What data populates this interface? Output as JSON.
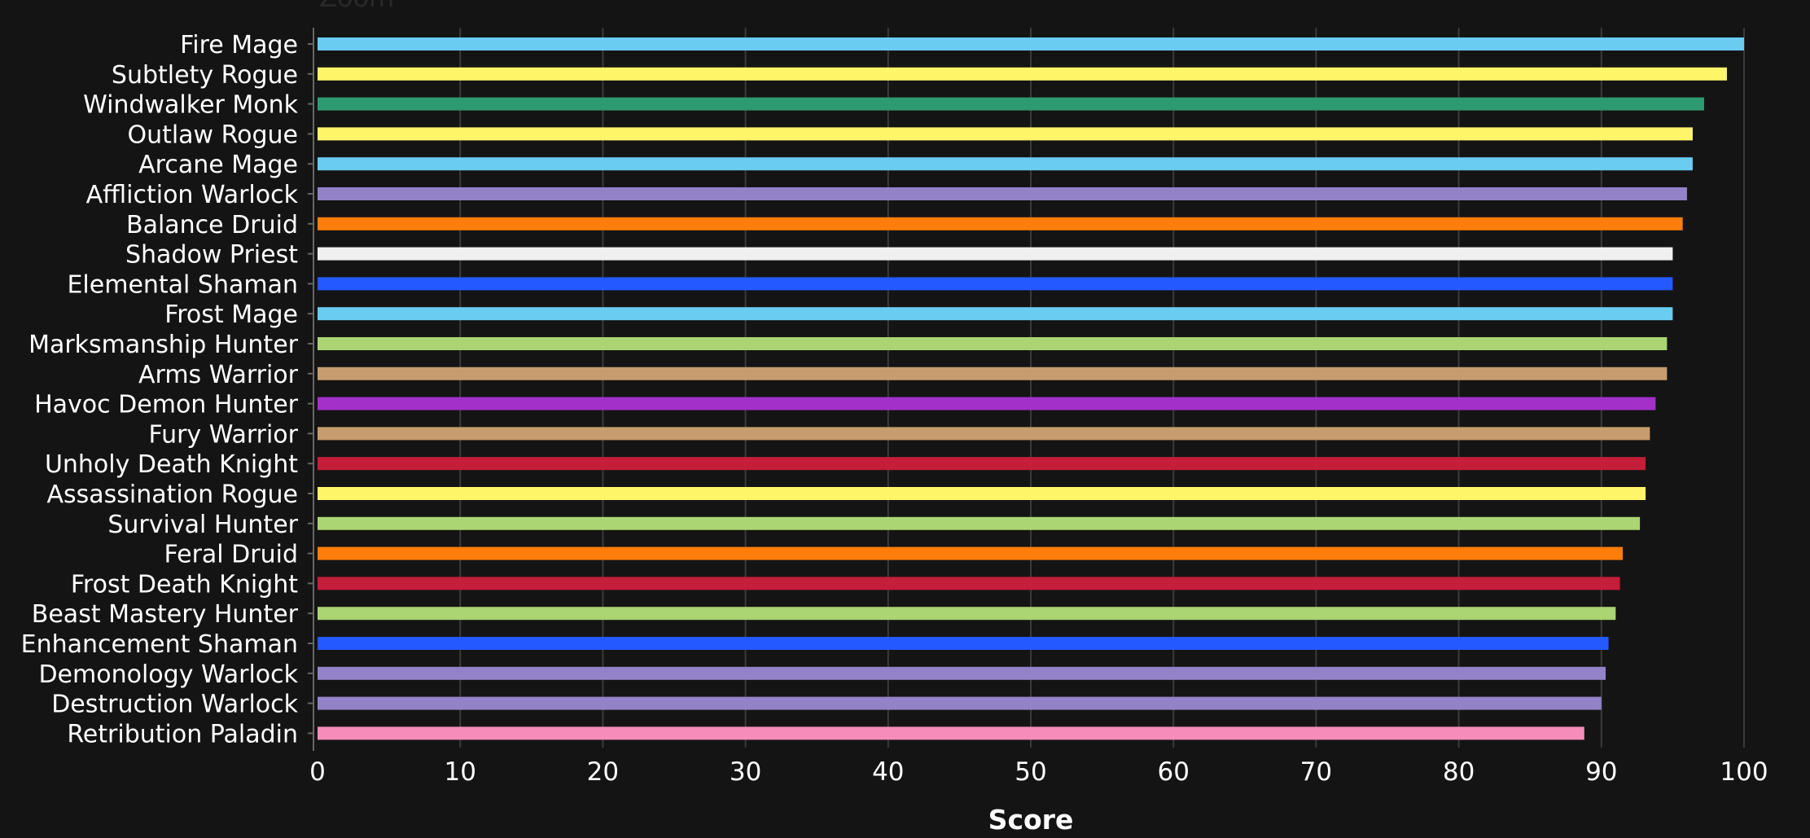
{
  "zoom_label": "Zoom",
  "chart_data": {
    "type": "bar",
    "orientation": "horizontal",
    "categories": [
      "Fire Mage",
      "Subtlety Rogue",
      "Windwalker Monk",
      "Outlaw Rogue",
      "Arcane Mage",
      "Affliction Warlock",
      "Balance Druid",
      "Shadow Priest",
      "Elemental Shaman",
      "Frost Mage",
      "Marksmanship Hunter",
      "Arms Warrior",
      "Havoc Demon Hunter",
      "Fury Warrior",
      "Unholy Death Knight",
      "Assassination Rogue",
      "Survival Hunter",
      "Feral Druid",
      "Frost Death Knight",
      "Beast Mastery Hunter",
      "Enhancement Shaman",
      "Demonology Warlock",
      "Destruction Warlock",
      "Retribution Paladin"
    ],
    "values": [
      100,
      98.8,
      97.2,
      96.4,
      96.4,
      96.0,
      95.7,
      95.0,
      95.0,
      95.0,
      94.6,
      94.6,
      93.8,
      93.4,
      93.1,
      93.1,
      92.7,
      91.5,
      91.3,
      91.0,
      90.5,
      90.3,
      90.0,
      88.8
    ],
    "colors": [
      "#69ccf0",
      "#fff569",
      "#2e9a72",
      "#fff569",
      "#69ccf0",
      "#9482c9",
      "#ff7d0a",
      "#f0f0f0",
      "#2459ff",
      "#69ccf0",
      "#abd473",
      "#c79c6e",
      "#a330c9",
      "#c79c6e",
      "#c41e3a",
      "#fff569",
      "#abd473",
      "#ff7d0a",
      "#c41e3a",
      "#abd473",
      "#2459ff",
      "#9482c9",
      "#9482c9",
      "#f58cba"
    ],
    "xlabel": "Score",
    "xlim": [
      0,
      100
    ],
    "xticks": [
      0,
      10,
      20,
      30,
      40,
      50,
      60,
      70,
      80,
      90,
      100
    ],
    "grid": true
  }
}
